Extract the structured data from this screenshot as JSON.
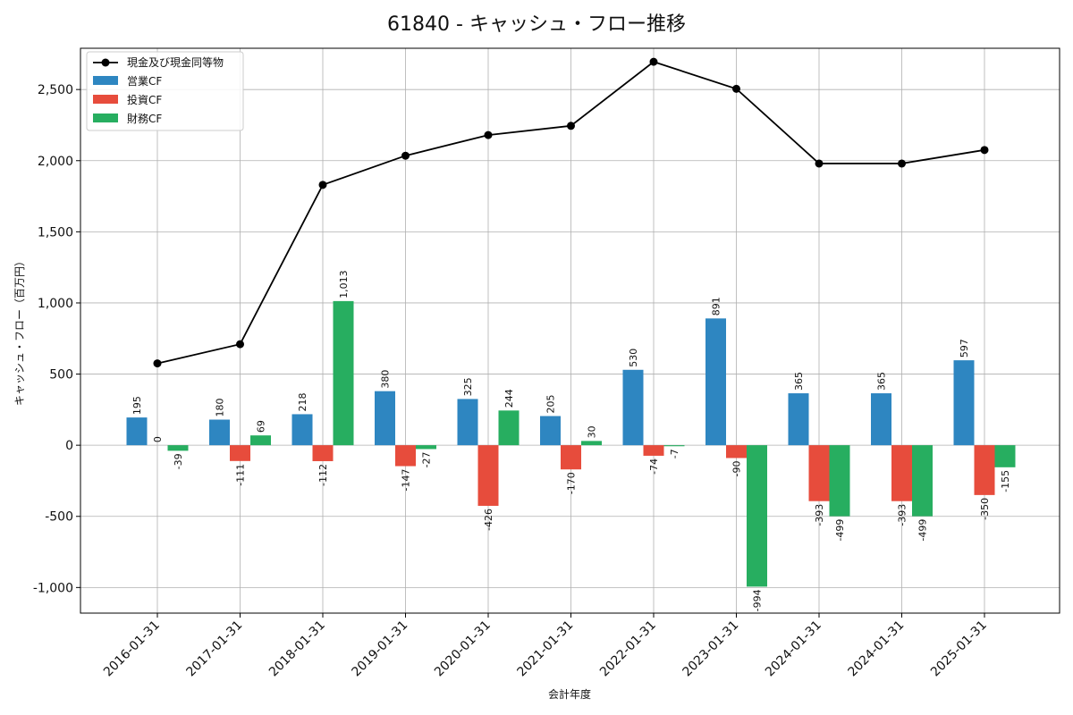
{
  "chart_data": {
    "type": "bar",
    "title": "61840 - キャッシュ・フロー推移",
    "xlabel": "会計年度",
    "ylabel": "キャッシュ・フロー（百万円）",
    "categories": [
      "2016-01-31",
      "2017-01-31",
      "2018-01-31",
      "2019-01-31",
      "2020-01-31",
      "2021-01-31",
      "2022-01-31",
      "2023-01-31",
      "2024-01-31",
      "2024-01-31",
      "2025-01-31"
    ],
    "series": [
      {
        "name": "営業CF",
        "type": "bar",
        "color": "#2e86c1",
        "values": [
          195,
          180,
          218,
          380,
          325,
          205,
          530,
          891,
          365,
          365,
          597
        ],
        "labels": [
          "195",
          "180",
          "218",
          "380",
          "325",
          "205",
          "530",
          "891",
          "365",
          "365",
          "597"
        ]
      },
      {
        "name": "投資CF",
        "type": "bar",
        "color": "#e74c3c",
        "values": [
          0,
          -111,
          -112,
          -147,
          -426,
          -170,
          -74,
          -90,
          -393,
          -393,
          -350
        ],
        "labels": [
          "0",
          "-111",
          "-112",
          "-147",
          "-426",
          "-170",
          "-74",
          "-90",
          "-393",
          "-393",
          "-350"
        ]
      },
      {
        "name": "財務CF",
        "type": "bar",
        "color": "#27ae60",
        "values": [
          -39,
          69,
          1013,
          -27,
          244,
          30,
          -7,
          -994,
          -499,
          -499,
          -155
        ],
        "labels": [
          "-39",
          "69",
          "1,013",
          "-27",
          "244",
          "30",
          "-7",
          "-994",
          "-499",
          "-499",
          "-155"
        ]
      },
      {
        "name": "現金及び現金同等物",
        "type": "line",
        "color": "#000000",
        "values": [
          575,
          710,
          1830,
          2035,
          2180,
          2245,
          2695,
          2505,
          1980,
          1980,
          2075
        ]
      }
    ],
    "ylim": [
      -1180,
      2790
    ],
    "yticks": [
      -1000,
      -500,
      0,
      500,
      1000,
      1500,
      2000,
      2500
    ],
    "ytick_labels": [
      "-1,000",
      "-500",
      "0",
      "500",
      "1,000",
      "1,500",
      "2,000",
      "2,500"
    ],
    "grid": true,
    "legend_position": "top-left"
  }
}
